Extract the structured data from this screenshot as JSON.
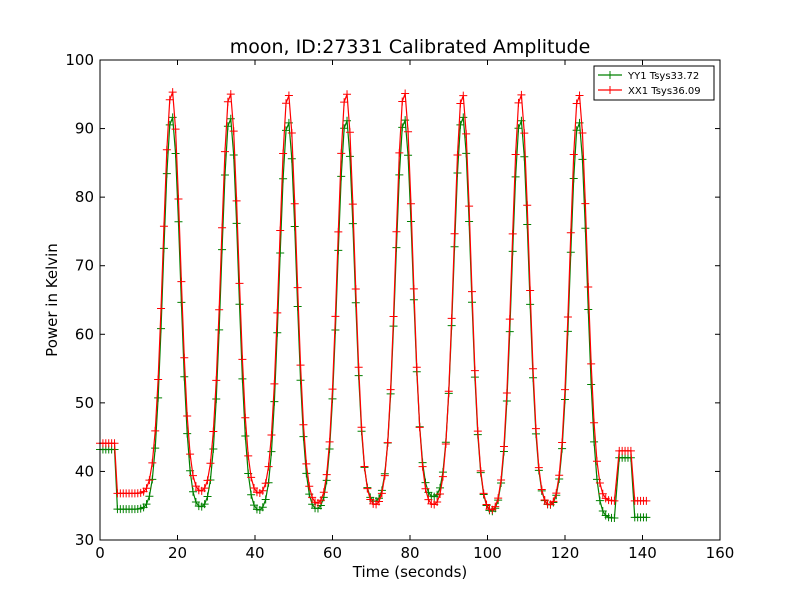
{
  "chart_data": {
    "type": "line",
    "title": "moon, ID:27331 Calibrated Amplitude",
    "xlabel": "Time (seconds)",
    "ylabel": "Power in Kelvin",
    "xlim": [
      0,
      160
    ],
    "ylim": [
      30,
      100
    ],
    "xticks": [
      0,
      20,
      40,
      60,
      80,
      100,
      120,
      140,
      160
    ],
    "yticks": [
      30,
      40,
      50,
      60,
      70,
      80,
      90,
      100
    ],
    "grid": false,
    "legend_position": "top-right",
    "marker": "+",
    "sample_interval_s": 0.75,
    "segments": [
      {
        "t_start": 0.0,
        "t_end": 4.0,
        "kind": "flat"
      },
      {
        "t_start": 4.5,
        "t_end": 133.0,
        "kind": "scan",
        "peak_times": [
          18.5,
          33.5,
          48.5,
          63.5,
          78.5,
          93.5,
          108.5,
          123.5
        ],
        "peak_width_s": 2.2
      },
      {
        "t_start": 134.0,
        "t_end": 137.5,
        "kind": "flat"
      },
      {
        "t_start": 138.0,
        "t_end": 141.5,
        "kind": "flat"
      }
    ],
    "series": [
      {
        "name": "YY1 Tsys33.72",
        "color": "#008000",
        "segment_levels": [
          43.2,
          null,
          42.0,
          33.3
        ],
        "baselines": [
          34.5,
          34.5,
          34.0,
          34.2,
          35.3,
          36.0,
          33.8,
          34.8,
          33.5,
          33.2
        ],
        "peaks": [
          92.0,
          91.8,
          91.2,
          91.5,
          91.6,
          92.0,
          91.5,
          91.2
        ]
      },
      {
        "name": "XX1 Tsys36.09",
        "color": "#ff0000",
        "segment_levels": [
          44.1,
          null,
          43.0,
          35.7
        ],
        "baselines": [
          36.8,
          36.8,
          36.5,
          35.0,
          34.8,
          34.8,
          34.0,
          34.8,
          35.3,
          35.7
        ],
        "peaks": [
          95.7,
          95.4,
          95.2,
          95.4,
          95.5,
          95.2,
          95.3,
          95.2
        ]
      }
    ]
  }
}
